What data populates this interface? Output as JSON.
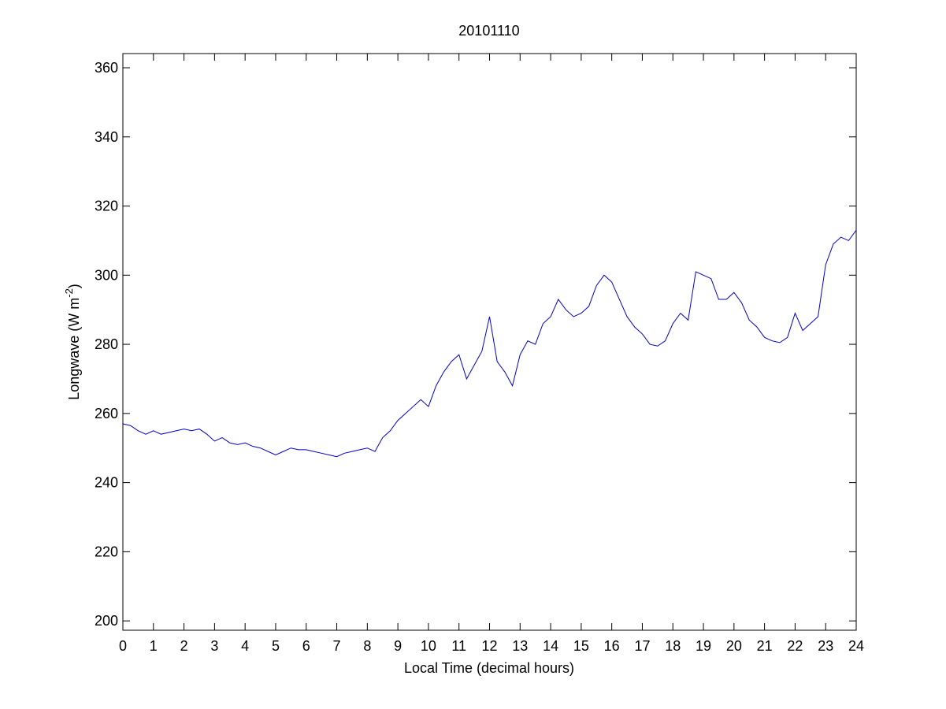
{
  "chart_data": {
    "type": "line",
    "title": "20101110",
    "x_label": "Local Time (decimal hours)",
    "y_label": [
      "Longwave (W m",
      "-2",
      ")"
    ],
    "xlim": [
      0,
      24
    ],
    "xticks": [
      0,
      1,
      2,
      3,
      4,
      5,
      6,
      7,
      8,
      9,
      10,
      11,
      12,
      13,
      14,
      15,
      16,
      17,
      18,
      19,
      20,
      21,
      22,
      23,
      24
    ],
    "ylim": [
      197.3,
      364.1
    ],
    "yticks": [
      200,
      220,
      240,
      260,
      280,
      300,
      320,
      340,
      360
    ],
    "grid": false,
    "x": [
      0,
      0.25,
      0.5,
      0.75,
      1,
      1.25,
      1.5,
      1.75,
      2,
      2.25,
      2.5,
      2.75,
      3,
      3.25,
      3.5,
      3.75,
      4,
      4.25,
      4.5,
      4.75,
      5,
      5.25,
      5.5,
      5.75,
      6,
      6.25,
      6.5,
      6.75,
      7,
      7.25,
      7.5,
      7.75,
      8,
      8.25,
      8.5,
      8.75,
      9,
      9.25,
      9.5,
      9.75,
      10,
      10.25,
      10.5,
      10.75,
      11,
      11.25,
      11.5,
      11.75,
      12,
      12.25,
      12.5,
      12.75,
      13,
      13.25,
      13.5,
      13.75,
      14,
      14.25,
      14.5,
      14.75,
      15,
      15.25,
      15.5,
      15.75,
      16,
      16.25,
      16.5,
      16.75,
      17,
      17.25,
      17.5,
      17.75,
      18,
      18.25,
      18.5,
      18.75,
      19,
      19.25,
      19.5,
      19.75,
      20,
      20.25,
      20.5,
      20.75,
      21,
      21.25,
      21.5,
      21.75,
      22,
      22.25,
      22.5,
      22.75,
      23,
      23.25,
      23.5,
      23.75,
      24
    ],
    "series": [
      {
        "color": "#0000cc",
        "values": [
          257,
          256.5,
          255,
          254,
          255,
          254,
          254.5,
          255,
          255.5,
          255,
          255.5,
          254,
          252,
          253,
          251.5,
          251,
          251.5,
          250.5,
          250,
          249,
          248,
          249,
          250,
          249.5,
          249.5,
          249,
          248.5,
          248,
          247.5,
          248.5,
          249,
          249.5,
          250,
          249,
          253,
          255,
          258,
          260,
          262,
          264,
          262,
          268,
          272,
          275,
          277,
          270,
          274,
          278,
          288,
          275,
          272,
          268,
          277,
          281,
          280,
          286,
          288,
          293,
          290,
          288,
          289,
          291,
          297,
          300,
          298,
          293,
          288,
          285,
          283,
          280,
          279.5,
          281,
          286,
          289,
          287,
          301,
          300,
          299,
          293,
          293,
          295,
          292,
          287,
          285,
          282,
          281,
          280.5,
          282,
          289,
          284,
          286,
          288,
          303,
          309,
          311,
          310,
          313
        ]
      }
    ]
  }
}
